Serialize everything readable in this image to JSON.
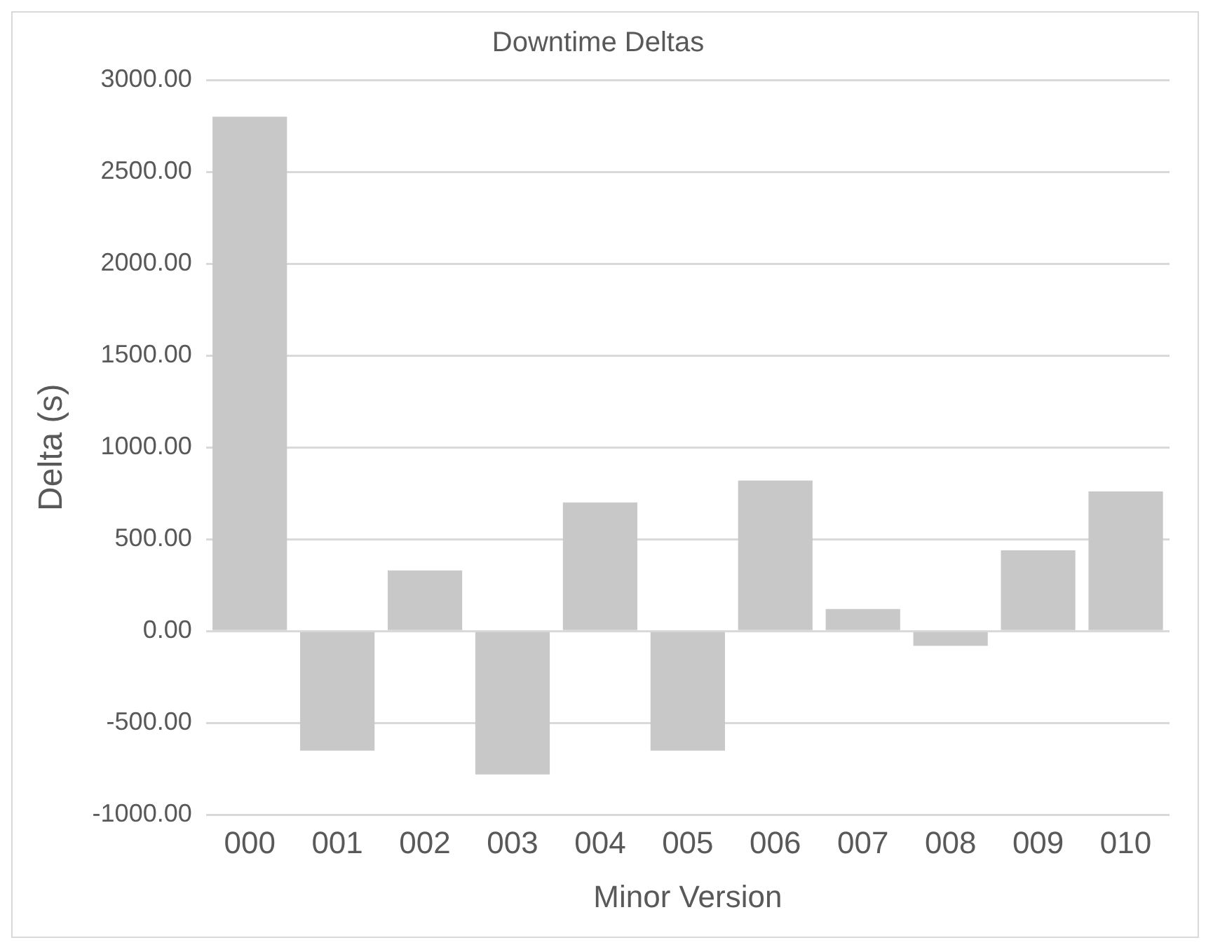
{
  "chart_data": {
    "type": "bar",
    "title": "Downtime Deltas",
    "xlabel": "Minor Version",
    "ylabel": "Delta (s)",
    "categories": [
      "000",
      "001",
      "002",
      "003",
      "004",
      "005",
      "006",
      "007",
      "008",
      "009",
      "010"
    ],
    "values": [
      2800,
      -650,
      330,
      -780,
      700,
      -650,
      820,
      120,
      -80,
      440,
      760
    ],
    "color": "#c8c8c8",
    "ylim": [
      -1000,
      3000
    ],
    "yticks": [
      {
        "value": -1000,
        "label": "-1000.00"
      },
      {
        "value": -500,
        "label": "-500.00"
      },
      {
        "value": 0,
        "label": "0.00"
      },
      {
        "value": 500,
        "label": "500.00"
      },
      {
        "value": 1000,
        "label": "1000.00"
      },
      {
        "value": 1500,
        "label": "1500.00"
      },
      {
        "value": 2000,
        "label": "2000.00"
      },
      {
        "value": 2500,
        "label": "2500.00"
      },
      {
        "value": 3000,
        "label": "3000.00"
      }
    ],
    "grid": "y",
    "legend": false
  }
}
